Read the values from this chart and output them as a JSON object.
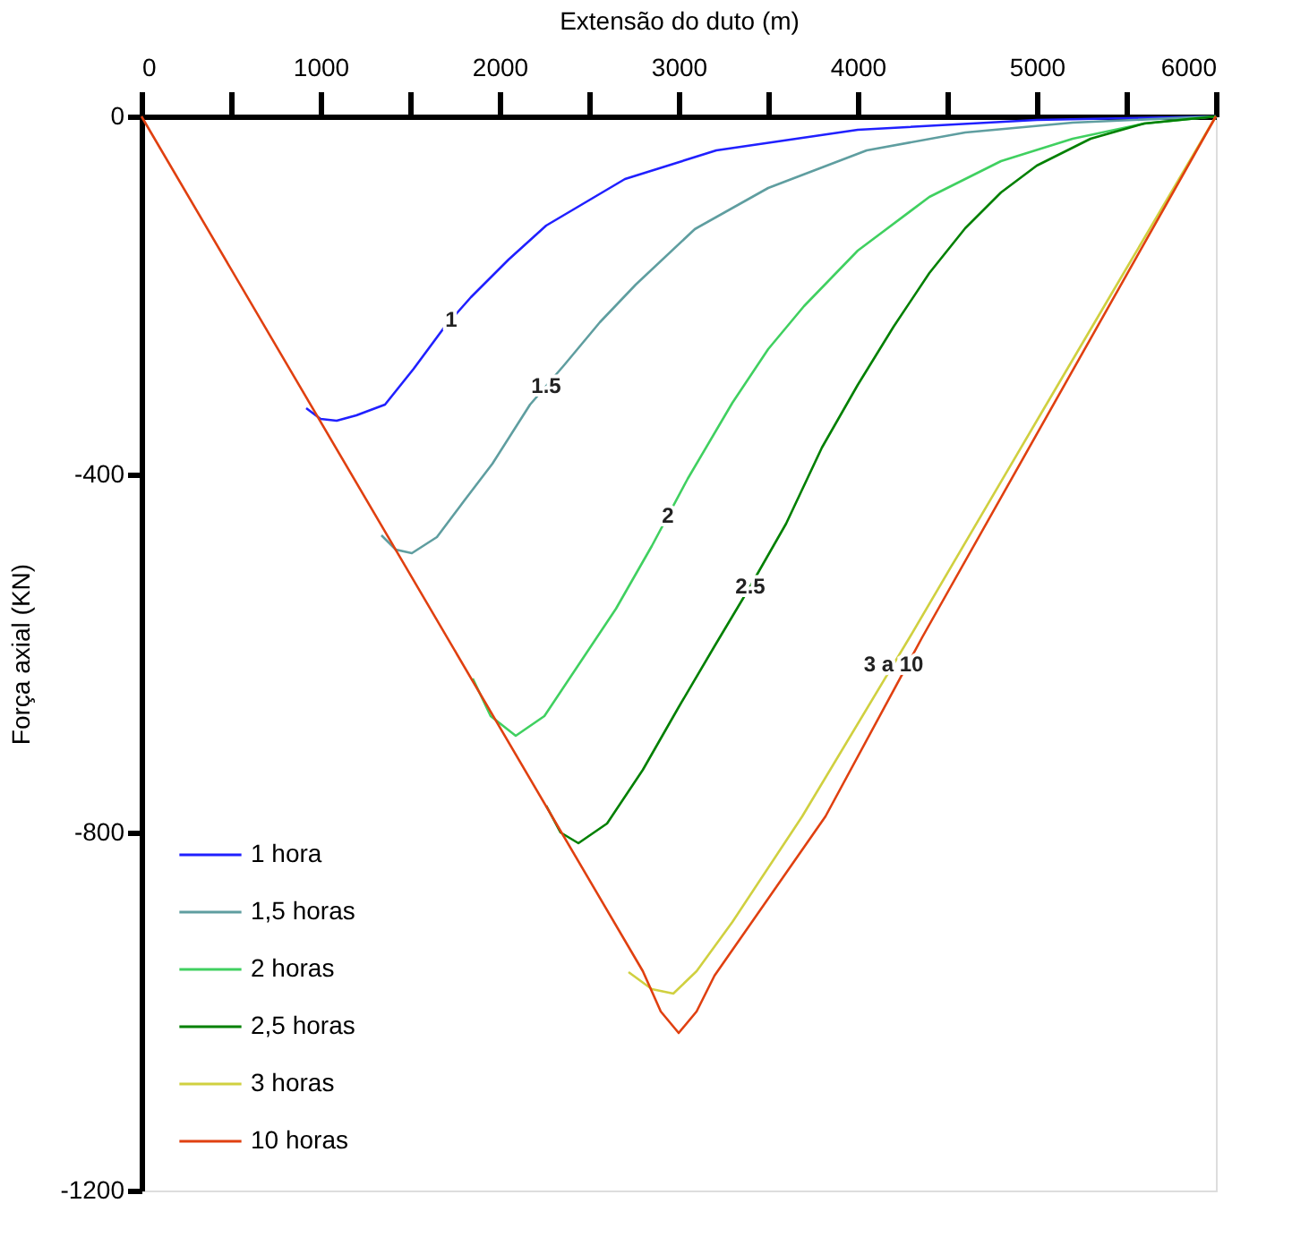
{
  "chart_data": {
    "type": "line",
    "xlabel": "Extensão do duto (m)",
    "ylabel": "Força axial (KN)",
    "xlim": [
      0,
      6000
    ],
    "ylim": [
      -1200,
      0
    ],
    "xticks": [
      0,
      {
        "value": 500,
        "label": null
      },
      1000,
      {
        "value": 1500,
        "label": null
      },
      2000,
      {
        "value": 2500,
        "label": null
      },
      3000,
      {
        "value": 3500,
        "label": null
      },
      4000,
      {
        "value": 4500,
        "label": null
      },
      5000,
      {
        "value": 5500,
        "label": null
      },
      6000
    ],
    "yticks": [
      0,
      -400,
      -800,
      -1200
    ],
    "grid": false,
    "legend": "bottom left",
    "line_style": "solid",
    "marker": "none",
    "series": [
      {
        "name": "1 hora",
        "color": "#2020ff",
        "x": [
          920,
          1000,
          1090,
          1200,
          1360,
          1520,
          1690,
          1840,
          2050,
          2260,
          2700,
          3210,
          4000,
          5000,
          6000
        ],
        "values": [
          -326,
          -338,
          -340,
          -334,
          -322,
          -282,
          -236,
          -202,
          -160,
          -122,
          -70,
          -38,
          -15,
          -4,
          0
        ]
      },
      {
        "name": "1,5 horas",
        "color": "#5f9ea0",
        "x": [
          1340,
          1420,
          1510,
          1650,
          1800,
          1960,
          2170,
          2360,
          2560,
          2760,
          3090,
          3500,
          4050,
          4600,
          5200,
          6000
        ],
        "values": [
          -468,
          -484,
          -488,
          -470,
          -430,
          -388,
          -322,
          -278,
          -230,
          -188,
          -126,
          -80,
          -38,
          -18,
          -7,
          0
        ]
      },
      {
        "name": "2 horas",
        "color": "#40d060",
        "x": [
          1850,
          1950,
          2090,
          2250,
          2450,
          2650,
          2850,
          3050,
          3300,
          3500,
          3700,
          4000,
          4400,
          4800,
          5200,
          5600,
          6000
        ],
        "values": [
          -628,
          -670,
          -692,
          -670,
          -610,
          -550,
          -480,
          -405,
          -320,
          -260,
          -212,
          -150,
          -90,
          -50,
          -25,
          -8,
          0
        ]
      },
      {
        "name": "2,5 horas",
        "color": "#008000",
        "x": [
          2260,
          2340,
          2440,
          2600,
          2800,
          3000,
          3200,
          3400,
          3600,
          3800,
          4000,
          4200,
          4400,
          4600,
          4800,
          5000,
          5300,
          5600,
          6000
        ],
        "values": [
          -770,
          -800,
          -812,
          -790,
          -730,
          -660,
          -592,
          -525,
          -455,
          -370,
          -300,
          -235,
          -175,
          -125,
          -85,
          -55,
          -25,
          -8,
          0
        ]
      },
      {
        "name": "3 horas",
        "color": "#d0d040",
        "x": [
          2720,
          2850,
          2970,
          3100,
          3300,
          3690,
          4290,
          5000,
          5500,
          6000
        ],
        "values": [
          -956,
          -975,
          -980,
          -955,
          -900,
          -782,
          -582,
          -340,
          -170,
          0
        ]
      },
      {
        "name": "10 horas",
        "color": "#e04010",
        "x": [
          0,
          2800,
          2900,
          3000,
          3100,
          3200,
          3820,
          4360,
          6000
        ],
        "values": [
          0,
          -955,
          -1000,
          -1024,
          -1000,
          -960,
          -782,
          -582,
          0
        ]
      }
    ],
    "annotations": [
      {
        "text": "1",
        "x": 1730,
        "y": -227
      },
      {
        "text": "1.5",
        "x": 2260,
        "y": -301
      },
      {
        "text": "2",
        "x": 2940,
        "y": -446
      },
      {
        "text": "2.5",
        "x": 3400,
        "y": -525
      },
      {
        "text": "3 a 10",
        "x": 4200,
        "y": -612
      }
    ]
  }
}
